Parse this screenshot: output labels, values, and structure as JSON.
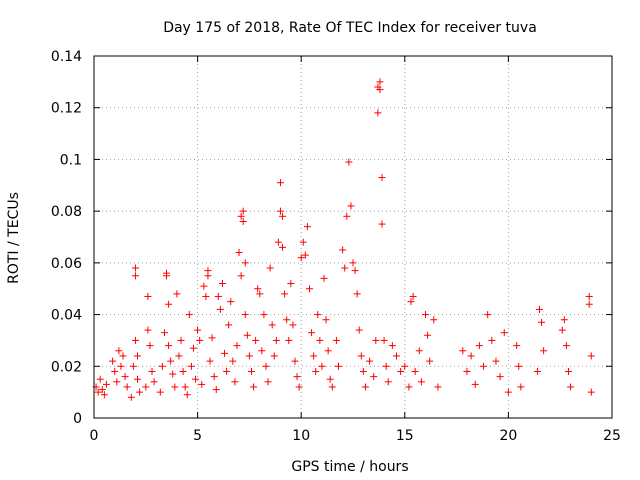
{
  "chart_data": {
    "type": "scatter",
    "title": "Day 175 of 2018, Rate Of TEC Index for receiver tuva",
    "xlabel": "GPS time / hours",
    "ylabel": "ROTI / TECUs",
    "xlim": [
      0,
      25
    ],
    "ylim": [
      0,
      0.14
    ],
    "xticks": [
      0,
      5,
      10,
      15,
      20,
      25
    ],
    "yticks": [
      0,
      0.02,
      0.04,
      0.06,
      0.08,
      0.1,
      0.12,
      0.14
    ],
    "xtick_labels": [
      "0",
      "5",
      "10",
      "15",
      "20",
      "25"
    ],
    "ytick_labels": [
      "0",
      "0.02",
      "0.04",
      "0.06",
      "0.08",
      "0.1",
      "0.12",
      "0.14"
    ],
    "grid": true,
    "marker": "+",
    "color": "#ff0000",
    "series": [
      {
        "name": "ROTI",
        "points": [
          [
            0.1,
            0.012
          ],
          [
            0.2,
            0.01
          ],
          [
            0.3,
            0.015
          ],
          [
            0.4,
            0.011
          ],
          [
            0.5,
            0.009
          ],
          [
            0.6,
            0.013
          ],
          [
            0.9,
            0.022
          ],
          [
            1.0,
            0.018
          ],
          [
            1.1,
            0.014
          ],
          [
            1.2,
            0.026
          ],
          [
            1.3,
            0.02
          ],
          [
            1.4,
            0.024
          ],
          [
            1.5,
            0.016
          ],
          [
            1.6,
            0.012
          ],
          [
            1.8,
            0.008
          ],
          [
            1.9,
            0.02
          ],
          [
            2.0,
            0.03
          ],
          [
            2.0,
            0.055
          ],
          [
            2.0,
            0.058
          ],
          [
            2.1,
            0.024
          ],
          [
            2.1,
            0.015
          ],
          [
            2.2,
            0.01
          ],
          [
            2.5,
            0.012
          ],
          [
            2.6,
            0.034
          ],
          [
            2.6,
            0.047
          ],
          [
            2.7,
            0.028
          ],
          [
            2.8,
            0.018
          ],
          [
            2.9,
            0.014
          ],
          [
            3.2,
            0.01
          ],
          [
            3.3,
            0.02
          ],
          [
            3.4,
            0.033
          ],
          [
            3.5,
            0.056
          ],
          [
            3.5,
            0.055
          ],
          [
            3.6,
            0.044
          ],
          [
            3.6,
            0.028
          ],
          [
            3.7,
            0.022
          ],
          [
            3.8,
            0.017
          ],
          [
            3.9,
            0.012
          ],
          [
            4.0,
            0.048
          ],
          [
            4.1,
            0.024
          ],
          [
            4.2,
            0.03
          ],
          [
            4.3,
            0.018
          ],
          [
            4.4,
            0.012
          ],
          [
            4.5,
            0.009
          ],
          [
            4.6,
            0.04
          ],
          [
            4.7,
            0.02
          ],
          [
            4.8,
            0.027
          ],
          [
            4.9,
            0.015
          ],
          [
            5.0,
            0.034
          ],
          [
            5.1,
            0.03
          ],
          [
            5.2,
            0.013
          ],
          [
            5.3,
            0.051
          ],
          [
            5.4,
            0.047
          ],
          [
            5.5,
            0.055
          ],
          [
            5.5,
            0.057
          ],
          [
            5.6,
            0.022
          ],
          [
            5.7,
            0.031
          ],
          [
            5.8,
            0.016
          ],
          [
            5.9,
            0.011
          ],
          [
            6.0,
            0.047
          ],
          [
            6.1,
            0.042
          ],
          [
            6.2,
            0.052
          ],
          [
            6.3,
            0.025
          ],
          [
            6.4,
            0.018
          ],
          [
            6.5,
            0.036
          ],
          [
            6.6,
            0.045
          ],
          [
            6.7,
            0.022
          ],
          [
            6.8,
            0.014
          ],
          [
            6.9,
            0.028
          ],
          [
            7.0,
            0.064
          ],
          [
            7.1,
            0.055
          ],
          [
            7.1,
            0.078
          ],
          [
            7.2,
            0.08
          ],
          [
            7.2,
            0.076
          ],
          [
            7.3,
            0.06
          ],
          [
            7.3,
            0.04
          ],
          [
            7.4,
            0.032
          ],
          [
            7.5,
            0.024
          ],
          [
            7.6,
            0.018
          ],
          [
            7.7,
            0.012
          ],
          [
            7.8,
            0.03
          ],
          [
            7.9,
            0.05
          ],
          [
            8.0,
            0.048
          ],
          [
            8.1,
            0.026
          ],
          [
            8.2,
            0.04
          ],
          [
            8.3,
            0.02
          ],
          [
            8.4,
            0.014
          ],
          [
            8.5,
            0.058
          ],
          [
            8.6,
            0.036
          ],
          [
            8.7,
            0.024
          ],
          [
            8.8,
            0.03
          ],
          [
            8.9,
            0.068
          ],
          [
            9.0,
            0.08
          ],
          [
            9.0,
            0.091
          ],
          [
            9.1,
            0.078
          ],
          [
            9.1,
            0.066
          ],
          [
            9.2,
            0.048
          ],
          [
            9.3,
            0.038
          ],
          [
            9.4,
            0.03
          ],
          [
            9.5,
            0.052
          ],
          [
            9.6,
            0.036
          ],
          [
            9.7,
            0.022
          ],
          [
            9.8,
            0.016
          ],
          [
            9.9,
            0.012
          ],
          [
            10.0,
            0.062
          ],
          [
            10.1,
            0.068
          ],
          [
            10.2,
            0.063
          ],
          [
            10.3,
            0.074
          ],
          [
            10.4,
            0.05
          ],
          [
            10.5,
            0.033
          ],
          [
            10.6,
            0.024
          ],
          [
            10.7,
            0.018
          ],
          [
            10.8,
            0.04
          ],
          [
            10.9,
            0.03
          ],
          [
            11.0,
            0.02
          ],
          [
            11.1,
            0.054
          ],
          [
            11.2,
            0.038
          ],
          [
            11.3,
            0.026
          ],
          [
            11.4,
            0.015
          ],
          [
            11.5,
            0.012
          ],
          [
            11.7,
            0.03
          ],
          [
            11.8,
            0.02
          ],
          [
            12.0,
            0.065
          ],
          [
            12.1,
            0.058
          ],
          [
            12.2,
            0.078
          ],
          [
            12.3,
            0.099
          ],
          [
            12.4,
            0.082
          ],
          [
            12.5,
            0.06
          ],
          [
            12.6,
            0.057
          ],
          [
            12.7,
            0.048
          ],
          [
            12.8,
            0.034
          ],
          [
            12.9,
            0.024
          ],
          [
            13.0,
            0.018
          ],
          [
            13.1,
            0.012
          ],
          [
            13.3,
            0.022
          ],
          [
            13.5,
            0.016
          ],
          [
            13.6,
            0.03
          ],
          [
            13.7,
            0.118
          ],
          [
            13.7,
            0.128
          ],
          [
            13.8,
            0.13
          ],
          [
            13.8,
            0.127
          ],
          [
            13.9,
            0.093
          ],
          [
            13.9,
            0.075
          ],
          [
            14.0,
            0.03
          ],
          [
            14.1,
            0.02
          ],
          [
            14.2,
            0.014
          ],
          [
            14.4,
            0.028
          ],
          [
            14.6,
            0.024
          ],
          [
            14.8,
            0.018
          ],
          [
            15.0,
            0.02
          ],
          [
            15.2,
            0.012
          ],
          [
            15.3,
            0.045
          ],
          [
            15.4,
            0.047
          ],
          [
            15.5,
            0.018
          ],
          [
            15.7,
            0.026
          ],
          [
            15.8,
            0.014
          ],
          [
            16.0,
            0.04
          ],
          [
            16.1,
            0.032
          ],
          [
            16.2,
            0.022
          ],
          [
            16.4,
            0.038
          ],
          [
            16.6,
            0.012
          ],
          [
            17.8,
            0.026
          ],
          [
            18.0,
            0.018
          ],
          [
            18.2,
            0.024
          ],
          [
            18.4,
            0.013
          ],
          [
            18.6,
            0.028
          ],
          [
            18.8,
            0.02
          ],
          [
            19.0,
            0.04
          ],
          [
            19.2,
            0.03
          ],
          [
            19.4,
            0.022
          ],
          [
            19.6,
            0.016
          ],
          [
            19.8,
            0.033
          ],
          [
            20.0,
            0.01
          ],
          [
            20.4,
            0.028
          ],
          [
            20.5,
            0.02
          ],
          [
            20.6,
            0.012
          ],
          [
            21.4,
            0.018
          ],
          [
            21.5,
            0.042
          ],
          [
            21.6,
            0.037
          ],
          [
            21.7,
            0.026
          ],
          [
            22.6,
            0.034
          ],
          [
            22.7,
            0.038
          ],
          [
            22.8,
            0.028
          ],
          [
            22.9,
            0.018
          ],
          [
            23.0,
            0.012
          ],
          [
            23.9,
            0.047
          ],
          [
            23.9,
            0.044
          ],
          [
            24.0,
            0.024
          ],
          [
            24.0,
            0.01
          ]
        ]
      }
    ]
  }
}
